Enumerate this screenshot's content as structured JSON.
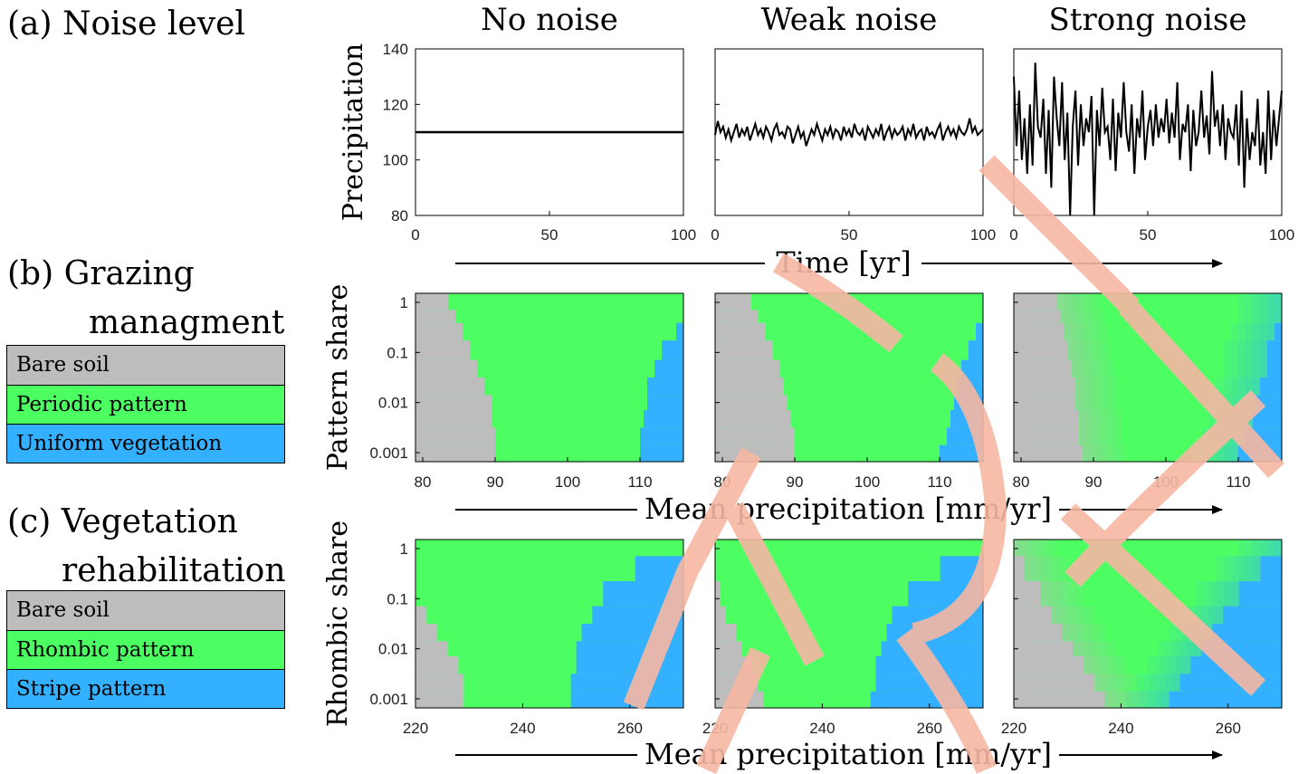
{
  "panels": {
    "a": {
      "label": "(a) Noise level"
    },
    "b": {
      "label_line1": "(b) Grazing",
      "label_line2": "managment",
      "legend": [
        {
          "label": "Bare soil",
          "color": "#bdbdbd"
        },
        {
          "label": "Periodic pattern",
          "color": "#4dfe63"
        },
        {
          "label": "Uniform vegetation",
          "color": "#33b0ff"
        }
      ]
    },
    "c": {
      "label_line1": "(c) Vegetation",
      "label_line2": "rehabilitation",
      "legend": [
        {
          "label": "Bare soil",
          "color": "#bdbdbd"
        },
        {
          "label": "Rhombic pattern",
          "color": "#4dfe63"
        },
        {
          "label": "Stripe pattern",
          "color": "#33b0ff"
        }
      ]
    }
  },
  "column_titles": [
    "No noise",
    "Weak noise",
    "Strong noise"
  ],
  "colors": {
    "bare": "#bdbdbd",
    "pattern": "#4dfe63",
    "uniform": "#33b0ff",
    "watermark": "#f7b7a3"
  },
  "chart_data": [
    {
      "type": "line",
      "row": "a",
      "ylabel": "Precipitation",
      "xlabel": "Time [yr]",
      "xlim": [
        0,
        100
      ],
      "ylim": [
        80,
        140
      ],
      "xticks": [
        0,
        50,
        100
      ],
      "yticks": [
        80,
        100,
        120,
        140
      ],
      "series": [
        {
          "column": "No noise",
          "mean": 110,
          "noise_amplitude": 0,
          "values": [
            110,
            110,
            110,
            110,
            110,
            110,
            110,
            110,
            110,
            110,
            110,
            110,
            110,
            110,
            110,
            110,
            110,
            110,
            110,
            110,
            110,
            110,
            110,
            110,
            110,
            110,
            110,
            110,
            110,
            110,
            110,
            110,
            110,
            110,
            110,
            110,
            110,
            110,
            110,
            110,
            110,
            110,
            110,
            110,
            110,
            110,
            110,
            110,
            110,
            110,
            110,
            110,
            110,
            110,
            110,
            110,
            110,
            110,
            110,
            110,
            110,
            110,
            110,
            110,
            110,
            110,
            110,
            110,
            110,
            110,
            110,
            110,
            110,
            110,
            110,
            110,
            110,
            110,
            110,
            110,
            110,
            110,
            110,
            110,
            110,
            110,
            110,
            110,
            110,
            110,
            110,
            110,
            110,
            110,
            110,
            110,
            110,
            110,
            110,
            110,
            110
          ]
        },
        {
          "column": "Weak noise",
          "mean": 110,
          "noise_amplitude": 3,
          "values": [
            109,
            114,
            110,
            112,
            108,
            111,
            107,
            110,
            113,
            108,
            111,
            109,
            112,
            107,
            110,
            113,
            109,
            111,
            108,
            112,
            110,
            107,
            111,
            113,
            109,
            110,
            108,
            112,
            111,
            106,
            109,
            112,
            108,
            110,
            105,
            108,
            111,
            109,
            113,
            110,
            107,
            111,
            109,
            112,
            108,
            111,
            110,
            107,
            112,
            109,
            111,
            108,
            113,
            110,
            109,
            111,
            107,
            112,
            110,
            108,
            111,
            109,
            113,
            107,
            110,
            112,
            108,
            111,
            109,
            110,
            112,
            107,
            111,
            109,
            113,
            108,
            110,
            111,
            107,
            112,
            109,
            110,
            108,
            111,
            113,
            107,
            110,
            112,
            109,
            111,
            108,
            112,
            110,
            109,
            111,
            115,
            110,
            112,
            109,
            110,
            111
          ]
        },
        {
          "column": "Strong noise",
          "mean": 110,
          "noise_amplitude": 15,
          "values": [
            130,
            105,
            125,
            100,
            115,
            95,
            120,
            98,
            135,
            112,
            108,
            122,
            95,
            118,
            90,
            130,
            115,
            105,
            128,
            100,
            117,
            80,
            112,
            125,
            98,
            120,
            105,
            115,
            110,
            123,
            80,
            118,
            105,
            126,
            110,
            112,
            100,
            122,
            96,
            117,
            108,
            128,
            110,
            103,
            120,
            95,
            115,
            108,
            125,
            100,
            112,
            118,
            105,
            120,
            108,
            115,
            110,
            122,
            106,
            117,
            108,
            128,
            100,
            113,
            110,
            120,
            96,
            118,
            105,
            110,
            125,
            108,
            116,
            102,
            132,
            112,
            118,
            105,
            120,
            100,
            115,
            110,
            108,
            120,
            98,
            125,
            90,
            115,
            100,
            110,
            105,
            122,
            98,
            110,
            95,
            125,
            100,
            118,
            105,
            115,
            125
          ]
        }
      ]
    },
    {
      "type": "heatmap",
      "row": "b",
      "ylabel": "Pattern share",
      "xlabel": "Mean precipitation [mm/yr]",
      "xlim": [
        79,
        116
      ],
      "ylim": [
        0.001,
        1
      ],
      "yscale": "log",
      "xticks": [
        80,
        90,
        100,
        110,
        120
      ],
      "yticks": [
        0.001,
        0.01,
        0.1,
        1
      ],
      "ytick_labels": [
        "0.001",
        "0.01",
        "0.1",
        "1"
      ],
      "categories": [
        "Bare soil",
        "Periodic pattern",
        "Uniform vegetation"
      ],
      "maps": [
        {
          "column": "No noise",
          "boundaries": [
            {
              "share": [
                1,
                0.5,
                0.3,
                0.1,
                0.05,
                0.02,
                0.01,
                0.005,
                0.002,
                0.001
              ],
              "bare_to_pattern": [
                83.5,
                84.5,
                85.5,
                86.5,
                87.5,
                88.5,
                89.5,
                89.5,
                90,
                90
              ]
            },
            {
              "share": [
                1,
                0.5,
                0.3,
                0.1,
                0.05,
                0.02,
                0.01,
                0.005,
                0.002,
                0.001
              ],
              "pattern_to_uniform": [
                116,
                116,
                115,
                113,
                112,
                111,
                111,
                110.5,
                110,
                110
              ]
            }
          ]
        },
        {
          "column": "Weak noise",
          "boundaries": [
            {
              "share": [
                1,
                0.5,
                0.3,
                0.1,
                0.05,
                0.02,
                0.01,
                0.005,
                0.002,
                0.001
              ],
              "bare_to_pattern": [
                84,
                85,
                86,
                87,
                88,
                88.5,
                89,
                89.5,
                90,
                90
              ]
            },
            {
              "share": [
                1,
                0.5,
                0.3,
                0.1,
                0.05,
                0.02,
                0.01,
                0.005,
                0.002,
                0.001
              ],
              "pattern_to_uniform": [
                116,
                116,
                115,
                114,
                113,
                112.5,
                112,
                111.5,
                111,
                110
              ]
            }
          ]
        },
        {
          "column": "Strong noise",
          "boundaries": [
            {
              "share": [
                1,
                0.5,
                0.3,
                0.1,
                0.05,
                0.02,
                0.01,
                0.005,
                0.002,
                0.001
              ],
              "bare_to_pattern": [
                85,
                85.5,
                86,
                86.5,
                87,
                87.5,
                87.5,
                88,
                88,
                88.5
              ]
            },
            {
              "share": [
                1,
                0.5,
                0.3,
                0.1,
                0.05,
                0.02,
                0.01,
                0.005,
                0.002,
                0.001
              ],
              "pattern_to_uniform": [
                116,
                116,
                115,
                114,
                114,
                113,
                112.5,
                112,
                111,
                110
              ]
            }
          ]
        }
      ]
    },
    {
      "type": "heatmap",
      "row": "c",
      "ylabel": "Rhombic share",
      "xlabel": "Mean precipitation [mm/yr]",
      "xlim": [
        220,
        270
      ],
      "ylim": [
        0.001,
        1
      ],
      "yscale": "log",
      "xticks": [
        220,
        240,
        260
      ],
      "yticks": [
        0.001,
        0.01,
        0.1,
        1
      ],
      "ytick_labels": [
        "0.001",
        "0.01",
        "0.1",
        "1"
      ],
      "categories": [
        "Bare soil",
        "Rhombic pattern",
        "Stripe pattern"
      ],
      "maps": [
        {
          "column": "No noise",
          "boundaries": [
            {
              "share": [
                1,
                0.5,
                0.1,
                0.05,
                0.02,
                0.01,
                0.005,
                0.002,
                0.001
              ],
              "bare_to_pattern": [
                220,
                220,
                220,
                222,
                224,
                226,
                228,
                229,
                229
              ]
            },
            {
              "share": [
                1,
                0.5,
                0.1,
                0.05,
                0.02,
                0.01,
                0.005,
                0.002,
                0.001
              ],
              "pattern_to_uniform": [
                270,
                261,
                255,
                253,
                251,
                250,
                250,
                249,
                249
              ]
            }
          ]
        },
        {
          "column": "Weak noise",
          "boundaries": [
            {
              "share": [
                1,
                0.5,
                0.1,
                0.05,
                0.02,
                0.01,
                0.005,
                0.002,
                0.001
              ],
              "bare_to_pattern": [
                220,
                220,
                221,
                222,
                224,
                225,
                227,
                228,
                229
              ]
            },
            {
              "share": [
                1,
                0.5,
                0.1,
                0.05,
                0.02,
                0.01,
                0.005,
                0.002,
                0.001
              ],
              "pattern_to_uniform": [
                270,
                262,
                256,
                253,
                252,
                251,
                250,
                250,
                249
              ]
            }
          ]
        },
        {
          "column": "Strong noise",
          "boundaries": [
            {
              "share": [
                1,
                0.5,
                0.1,
                0.05,
                0.02,
                0.01,
                0.005,
                0.002,
                0.001
              ],
              "bare_to_pattern": [
                220,
                222,
                225,
                227,
                229,
                231,
                233,
                235,
                237
              ]
            },
            {
              "share": [
                1,
                0.5,
                0.1,
                0.05,
                0.02,
                0.01,
                0.005,
                0.002,
                0.001
              ],
              "pattern_to_uniform": [
                270,
                266,
                262,
                259,
                257,
                255,
                253,
                251,
                249
              ]
            }
          ]
        }
      ]
    }
  ]
}
